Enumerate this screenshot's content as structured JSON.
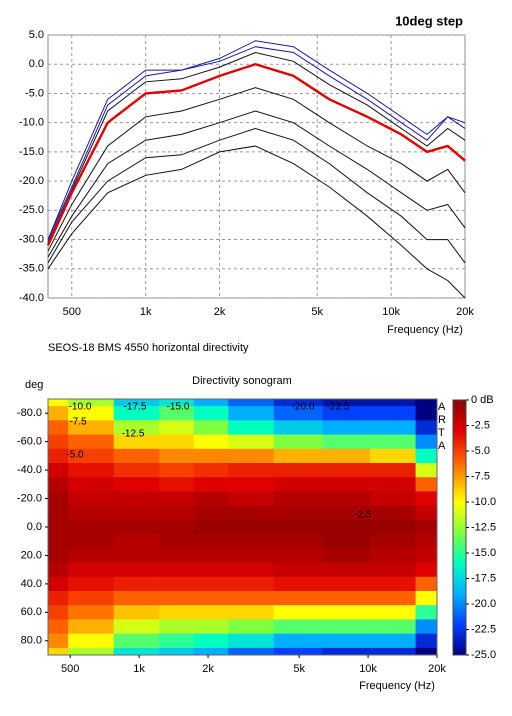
{
  "chart_data": [
    {
      "type": "line",
      "title": "10deg step",
      "xlabel": "Frequency (Hz)",
      "caption": "SEOS-18 BMS 4550 horizontal directivity",
      "log_x": true,
      "grid": true,
      "x": [
        400,
        500,
        700,
        1000,
        1400,
        2000,
        2800,
        4000,
        5600,
        8000,
        11000,
        14000,
        17000,
        20000
      ],
      "series": [
        {
          "color": "#111111",
          "values": [
            -35,
            -29,
            -22,
            -19,
            -18,
            -15,
            -14,
            -17,
            -21,
            -26,
            -31,
            -35,
            -37,
            -40
          ]
        },
        {
          "color": "#111111",
          "values": [
            -34,
            -27,
            -20,
            -16,
            -15.5,
            -13,
            -11,
            -13,
            -17,
            -22,
            -26,
            -30,
            -30,
            -34
          ]
        },
        {
          "color": "#111111",
          "values": [
            -33,
            -26,
            -17,
            -13,
            -12,
            -10,
            -8,
            -10,
            -14,
            -18,
            -22,
            -25,
            -24,
            -28
          ]
        },
        {
          "color": "#111111",
          "values": [
            -32,
            -24,
            -14,
            -9,
            -8,
            -6,
            -4,
            -6,
            -10,
            -14,
            -17,
            -20,
            -18,
            -22
          ]
        },
        {
          "color": "#111111",
          "values": [
            -30.5,
            -21.5,
            -8,
            -3,
            -2.5,
            -0.5,
            2,
            0.5,
            -3.5,
            -7,
            -11,
            -14,
            -11,
            -13
          ]
        },
        {
          "color": "#1a1aa0",
          "values": [
            -30,
            -21,
            -7,
            -2,
            -1,
            0.5,
            3,
            2,
            -2,
            -6,
            -10,
            -13,
            -9,
            -10
          ]
        },
        {
          "color": "#1a1aa0",
          "values": [
            -30,
            -20,
            -6,
            -1,
            -1,
            1,
            4,
            3,
            -1,
            -5,
            -9,
            -12,
            -9,
            -11
          ]
        },
        {
          "color": "#e00000",
          "values": [
            -31,
            -22,
            -10,
            -5,
            -4.5,
            -2,
            0,
            -2,
            -6,
            -9,
            -12,
            -15,
            -14,
            -16.5
          ]
        }
      ],
      "xlim": [
        400,
        20000
      ],
      "ylim": [
        -40,
        5
      ],
      "xticks": [
        500,
        {
          "value": 1000,
          "label": "1k"
        },
        {
          "value": 2000,
          "label": "2k"
        },
        {
          "value": 5000,
          "label": "5k"
        },
        {
          "value": 10000,
          "label": "10k"
        },
        {
          "value": 20000,
          "label": "20k"
        }
      ],
      "yticks": [
        {
          "value": 5,
          "label": "5.0"
        },
        {
          "value": 0,
          "label": "0.0"
        },
        {
          "value": -5,
          "label": "-5.0"
        },
        {
          "value": -10,
          "label": "-10.0"
        },
        {
          "value": -15,
          "label": "-15.0"
        },
        {
          "value": -20,
          "label": "-20.0"
        },
        {
          "value": -25,
          "label": "-25.0"
        },
        {
          "value": -30,
          "label": "-30.0"
        },
        {
          "value": -35,
          "label": "-35.0"
        },
        {
          "value": -40,
          "label": "-40.0"
        }
      ]
    },
    {
      "type": "heatmap",
      "title": "Directivity sonogram",
      "xlabel": "Frequency (Hz)",
      "ylabel": "deg",
      "logo": "ARTA",
      "log_x": true,
      "y_inverted": true,
      "x": [
        400,
        600,
        1000,
        1500,
        2000,
        3000,
        5000,
        8000,
        13000,
        20000
      ],
      "y": [
        -90,
        -80,
        -70,
        -60,
        -50,
        -40,
        -30,
        -20,
        -10,
        0,
        10,
        20,
        30,
        40,
        50,
        60,
        70,
        80,
        90
      ],
      "values": [
        [
          -10,
          -12,
          -18,
          -17,
          -19,
          -21,
          -23,
          -24,
          -24,
          -25
        ],
        [
          -8,
          -10,
          -16,
          -14,
          -16,
          -19,
          -21,
          -22,
          -22,
          -25
        ],
        [
          -6,
          -8,
          -12,
          -11,
          -13,
          -16,
          -18,
          -19,
          -19,
          -23
        ],
        [
          -5,
          -6,
          -9,
          -9,
          -10,
          -11,
          -13,
          -14,
          -14,
          -20
        ],
        [
          -4,
          -5,
          -6,
          -7,
          -7,
          -7,
          -8,
          -8,
          -9,
          -16
        ],
        [
          -2.5,
          -3.5,
          -4.5,
          -5,
          -4.5,
          -4,
          -4,
          -4,
          -4,
          -11
        ],
        [
          -1.5,
          -2.5,
          -3,
          -3.5,
          -3,
          -3,
          -2.5,
          -2.5,
          -2.5,
          -6
        ],
        [
          -1,
          -2,
          -2,
          -2,
          -1.5,
          -2,
          -1.5,
          -1.5,
          -2,
          -3
        ],
        [
          -1,
          -1.5,
          -1.5,
          -1.5,
          -1,
          -1,
          -1,
          -1,
          -1,
          -2
        ],
        [
          -1,
          -1,
          -1,
          -1,
          -0.5,
          -0.5,
          -0.5,
          -0.5,
          -0.5,
          -1
        ],
        [
          -1,
          -1,
          -1.5,
          -1,
          -1,
          -1,
          -1,
          -0.5,
          -1,
          -1.5
        ],
        [
          -1,
          -1.5,
          -1.5,
          -1.5,
          -1.5,
          -1.5,
          -1.5,
          -1,
          -1.5,
          -2
        ],
        [
          -1.5,
          -2.5,
          -2.5,
          -2.5,
          -2.5,
          -2.5,
          -2,
          -2,
          -2,
          -3
        ],
        [
          -2.5,
          -3.5,
          -4,
          -4,
          -4,
          -4,
          -3.5,
          -3.5,
          -3.5,
          -6
        ],
        [
          -4,
          -5,
          -6,
          -6,
          -6,
          -6,
          -6,
          -6,
          -6,
          -10
        ],
        [
          -5,
          -6.5,
          -8.5,
          -9,
          -9,
          -9,
          -10,
          -10,
          -10,
          -15
        ],
        [
          -6,
          -8,
          -11,
          -12,
          -12,
          -13,
          -14,
          -14,
          -14,
          -20
        ],
        [
          -7,
          -10,
          -14,
          -15,
          -16,
          -17,
          -19,
          -19,
          -19,
          -23
        ],
        [
          -9,
          -12,
          -17,
          -18,
          -19,
          -21,
          -22,
          -23,
          -23,
          -25
        ]
      ],
      "xlim": [
        400,
        20000
      ],
      "ylim": [
        -90,
        90
      ],
      "xticks": [
        500,
        {
          "value": 1000,
          "label": "1k"
        },
        {
          "value": 2000,
          "label": "2k"
        },
        {
          "value": 5000,
          "label": "5k"
        },
        {
          "value": 10000,
          "label": "10k"
        },
        {
          "value": 20000,
          "label": "20k"
        }
      ],
      "yticks": [
        {
          "value": -80,
          "label": "-80.0"
        },
        {
          "value": -60,
          "label": "-60.0"
        },
        {
          "value": -40,
          "label": "-40.0"
        },
        {
          "value": -20,
          "label": "-20.0"
        },
        {
          "value": 0,
          "label": "0.0"
        },
        {
          "value": 20,
          "label": "20.0"
        },
        {
          "value": 40,
          "label": "40.0"
        },
        {
          "value": 60,
          "label": "60.0"
        },
        {
          "value": 80,
          "label": "80.0"
        }
      ],
      "zlim": [
        -25,
        0
      ],
      "zticks": [
        {
          "value": 0,
          "label": "0 dB"
        },
        -2.5,
        {
          "value": -5,
          "label": "-5.0"
        },
        -7.5,
        {
          "value": -10,
          "label": "-10.0"
        },
        -12.5,
        {
          "value": -15,
          "label": "-15.0"
        },
        -17.5,
        {
          "value": -20,
          "label": "-20.0"
        },
        -22.5,
        {
          "value": -25,
          "label": "-25.0"
        }
      ],
      "colormap": [
        {
          "value": 0,
          "color": "#8b0000"
        },
        {
          "value": -3,
          "color": "#e00000"
        },
        {
          "value": -6,
          "color": "#ff6000"
        },
        {
          "value": -10,
          "color": "#ffff00"
        },
        {
          "value": -13,
          "color": "#80ff40"
        },
        {
          "value": -16,
          "color": "#00ffc0"
        },
        {
          "value": -19,
          "color": "#00b0ff"
        },
        {
          "value": -22,
          "color": "#0040ff"
        },
        {
          "value": -25,
          "color": "#000080"
        }
      ],
      "annotations": [
        "-10.0",
        "-7.5",
        "-17.5",
        "-15.0",
        "-12.5",
        "-5.0",
        "-20.0",
        "-22.5",
        "-2.5"
      ]
    }
  ]
}
